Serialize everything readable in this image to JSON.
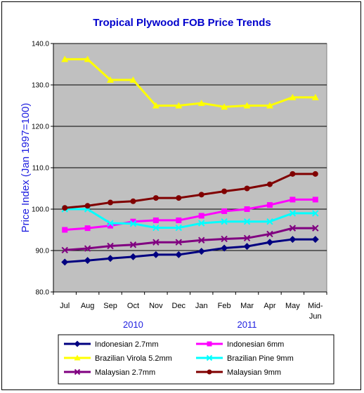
{
  "chart_data": {
    "type": "line",
    "title": "Tropical Plywood FOB Price Trends",
    "ylabel": "Price Index (Jan 1997=100)",
    "xlabel": "",
    "ylim": [
      80,
      140
    ],
    "y_ticks": [
      "80.0",
      "90.0",
      "100.0",
      "110.0",
      "120.0",
      "130.0",
      "140.0"
    ],
    "categories": [
      "Jul",
      "Aug",
      "Sep",
      "Oct",
      "Nov",
      "Dec",
      "Jan",
      "Feb",
      "Mar",
      "Apr",
      "May",
      "Mid-Jun"
    ],
    "year_labels": [
      {
        "text": "2010",
        "category_index": 3
      },
      {
        "text": "2011",
        "category_index": 8
      }
    ],
    "grid": "horizontal",
    "plot_background": "#c0c0c0",
    "legend_position": "bottom",
    "series": [
      {
        "name": "Indonesian 2.7mm",
        "color": "#000080",
        "marker": "diamond",
        "values": [
          87.2,
          87.6,
          88.1,
          88.5,
          89.0,
          89.0,
          89.8,
          90.6,
          91.0,
          92.0,
          92.7,
          92.7
        ]
      },
      {
        "name": "Indonesian 6mm",
        "color": "#ff00ff",
        "marker": "square",
        "values": [
          95.0,
          95.4,
          96.0,
          97.0,
          97.3,
          97.3,
          98.4,
          99.5,
          100.0,
          101.0,
          102.3,
          102.3
        ]
      },
      {
        "name": "Brazilian Virola 5.2mm",
        "color": "#ffff00",
        "marker": "triangle",
        "values": [
          136.2,
          136.2,
          131.2,
          131.2,
          125.0,
          125.0,
          125.6,
          124.7,
          125.0,
          125.0,
          127.0,
          127.0
        ]
      },
      {
        "name": "Brazilian Pine 9mm",
        "color": "#00ffff",
        "marker": "x",
        "values": [
          100.0,
          100.0,
          96.6,
          96.5,
          95.5,
          95.5,
          96.6,
          97.0,
          97.0,
          97.0,
          99.0,
          99.0
        ]
      },
      {
        "name": "Malaysian 2.7mm",
        "color": "#800080",
        "marker": "x",
        "values": [
          90.1,
          90.5,
          91.1,
          91.4,
          92.0,
          92.0,
          92.5,
          92.8,
          93.0,
          94.0,
          95.4,
          95.4
        ]
      },
      {
        "name": "Malaysian 9mm",
        "color": "#800000",
        "marker": "circle",
        "values": [
          100.3,
          100.8,
          101.6,
          101.9,
          102.7,
          102.7,
          103.5,
          104.3,
          105.0,
          106.0,
          108.5,
          108.5
        ]
      }
    ]
  }
}
